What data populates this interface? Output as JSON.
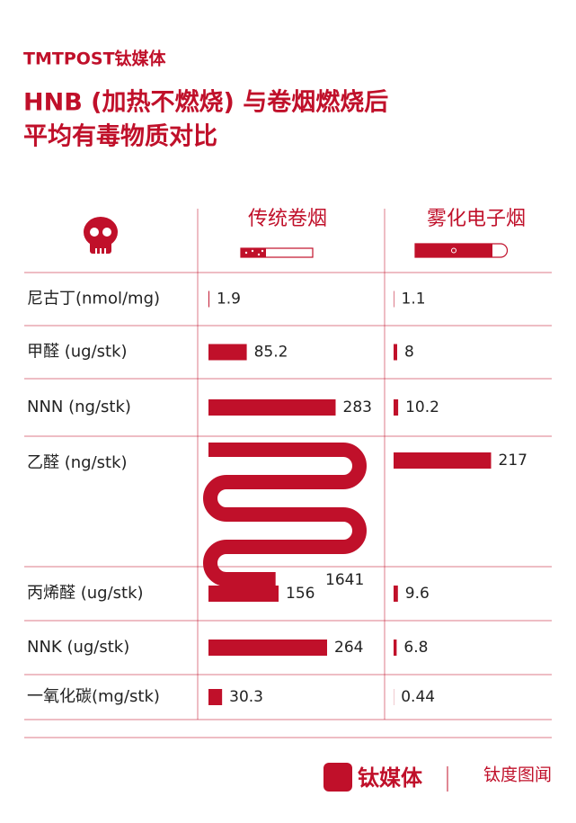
{
  "brand": "TMTPOST钛媒体",
  "chart_data": {
    "type": "bar",
    "title": [
      "HNB (加热不燃烧) 与卷烟燃烧后",
      "平均有毒物质对比"
    ],
    "categories": [
      "尼古丁(nmol/mg)",
      "甲醛 (ug/stk)",
      "NNN (ng/stk)",
      "乙醛 (ng/stk)",
      "丙烯醛 (ug/stk)",
      "NNK (ug/stk)",
      "一氧化碳(mg/stk)"
    ],
    "series": [
      {
        "name": "传统卷烟",
        "color": "#c0102a",
        "values": [
          1.9,
          85.2,
          283,
          1641,
          156,
          264,
          30.3
        ]
      },
      {
        "name": "雾化电子烟",
        "color": "#c0102a",
        "values": [
          1.1,
          8,
          10.2,
          217,
          9.6,
          6.8,
          0.44
        ]
      }
    ]
  },
  "footer": {
    "logo": "钛媒体",
    "partner": "钛度图闻"
  }
}
